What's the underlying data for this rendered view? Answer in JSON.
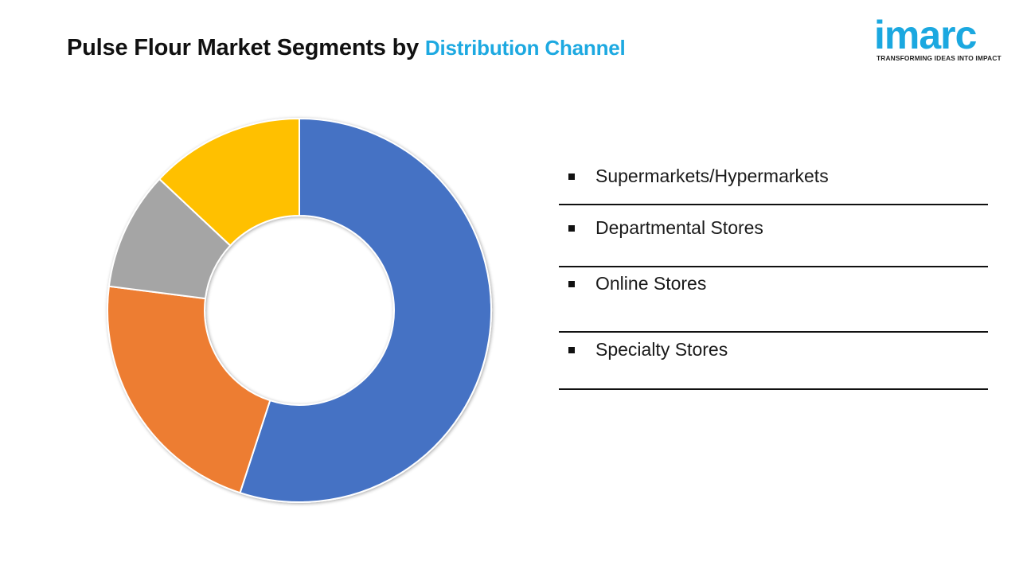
{
  "title": {
    "main": "Pulse Flour Market Segments by",
    "highlight": "Distribution Channel"
  },
  "logo": {
    "word": "imarc",
    "tagline": "TRANSFORMING IDEAS INTO IMPACT"
  },
  "chart_data": {
    "type": "pie",
    "variant": "donut",
    "title": "Pulse Flour Market Segments by Distribution Channel",
    "categories": [
      "Supermarkets/Hypermarkets",
      "Departmental Stores",
      "Online Stores",
      "Specialty Stores"
    ],
    "values": [
      55,
      22,
      10,
      13
    ],
    "colors": [
      "#4472c4",
      "#ed7d31",
      "#a5a5a5",
      "#ffc000"
    ],
    "legend_position": "right"
  }
}
